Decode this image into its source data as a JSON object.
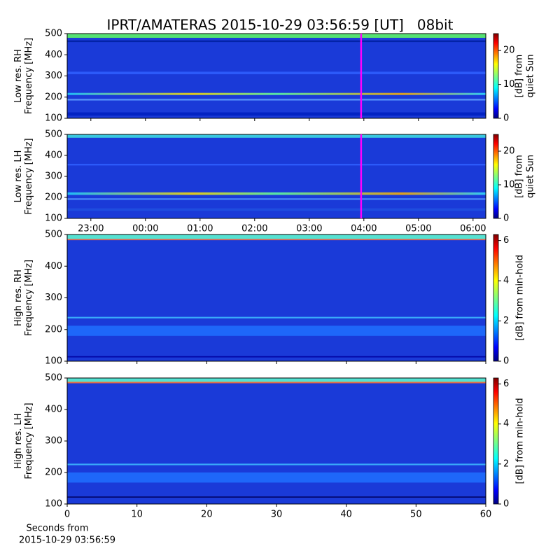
{
  "title": "IPRT/AMATERAS 2015-10-29 03:56:59 [UT]   08bit",
  "chart_data": [
    {
      "type": "heatmap",
      "ylabel": [
        "Low res. RH",
        "Frequency [MHz]"
      ],
      "ylim": [
        100,
        500
      ],
      "yticks": [
        100,
        200,
        300,
        400,
        500
      ],
      "xlim": [
        "22:34",
        "06:14"
      ],
      "xticks": [
        "23:00",
        "00:00",
        "01:00",
        "02:00",
        "03:00",
        "04:00",
        "05:00",
        "06:00"
      ],
      "xtick_labels": false,
      "marker": "03:56:59",
      "marker_color": "#ff00ff",
      "colorbar": {
        "label": [
          "[dB] from",
          "quiet Sun"
        ],
        "lim": [
          0,
          25
        ],
        "ticks": [
          0,
          10,
          20
        ],
        "cmap": "jet"
      }
    },
    {
      "type": "heatmap",
      "ylabel": [
        "Low res. LH",
        "Frequency [MHz]"
      ],
      "ylim": [
        100,
        500
      ],
      "yticks": [
        100,
        200,
        300,
        400,
        500
      ],
      "xlim": [
        "22:34",
        "06:14"
      ],
      "xticks": [
        "23:00",
        "00:00",
        "01:00",
        "02:00",
        "03:00",
        "04:00",
        "05:00",
        "06:00"
      ],
      "xtick_labels": true,
      "marker": "03:56:59",
      "marker_color": "#ff00ff",
      "colorbar": {
        "label": [
          "[dB] from",
          "quiet Sun"
        ],
        "lim": [
          0,
          25
        ],
        "ticks": [
          0,
          10,
          20
        ],
        "cmap": "jet"
      }
    },
    {
      "type": "heatmap",
      "ylabel": [
        "High res. RH",
        "Frequency [MHz]"
      ],
      "ylim": [
        100,
        500
      ],
      "yticks": [
        100,
        200,
        300,
        400,
        500
      ],
      "xlim": [
        0,
        60
      ],
      "xticks": [
        0,
        10,
        20,
        30,
        40,
        50,
        60
      ],
      "xtick_labels": false,
      "colorbar": {
        "label": [
          "[dB] from min-hold"
        ],
        "lim": [
          0,
          6.3
        ],
        "ticks": [
          0,
          2,
          4,
          6
        ],
        "cmap": "jet"
      }
    },
    {
      "type": "heatmap",
      "ylabel": [
        "High res. LH",
        "Frequency [MHz]"
      ],
      "ylim": [
        100,
        500
      ],
      "yticks": [
        100,
        200,
        300,
        400,
        500
      ],
      "xlim": [
        0,
        60
      ],
      "xticks": [
        0,
        10,
        20,
        30,
        40,
        50,
        60
      ],
      "xtick_labels": true,
      "xlabel": [
        "Seconds from",
        "2015-10-29 03:56:59"
      ],
      "colorbar": {
        "label": [
          "[dB] from min-hold"
        ],
        "lim": [
          0,
          6.3
        ],
        "ticks": [
          0,
          2,
          4,
          6
        ],
        "cmap": "jet"
      }
    }
  ]
}
